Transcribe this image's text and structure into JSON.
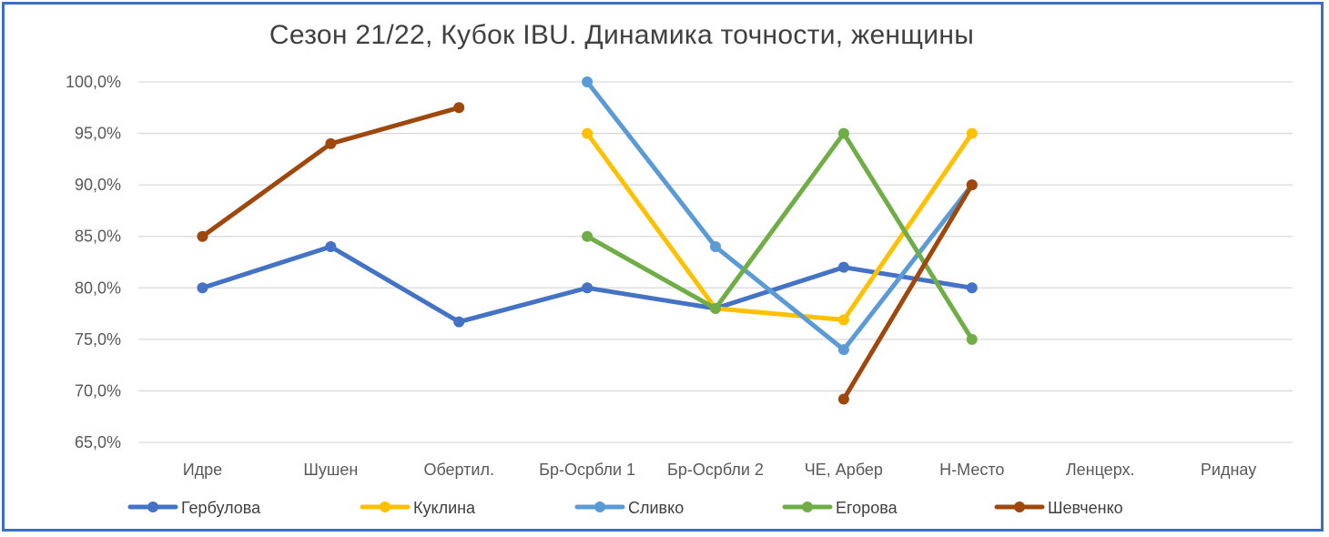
{
  "chart_data": {
    "type": "line",
    "title": "Сезон 21/22, Кубок IBU. Динамика точности, женщины",
    "xlabel": "",
    "ylabel": "",
    "categories": [
      "Идре",
      "Шушен",
      "Обертил.",
      "Бр-Осрбли 1",
      "Бр-Осрбли 2",
      "ЧЕ, Арбер",
      "Н-Место",
      "Ленцерх.",
      "Риднау"
    ],
    "ylim": [
      65,
      100
    ],
    "ytick_step": 5,
    "ytick_labels": [
      "65,0%",
      "70,0%",
      "75,0%",
      "80,0%",
      "85,0%",
      "90,0%",
      "95,0%",
      "100,0%"
    ],
    "grid": true,
    "legend_position": "bottom",
    "series": [
      {
        "name": "Гербулова",
        "color": "#4472c4",
        "values": [
          80,
          84,
          76.7,
          80,
          78,
          82,
          80,
          null,
          null
        ]
      },
      {
        "name": "Куклина",
        "color": "#ffc000",
        "values": [
          null,
          null,
          null,
          95,
          78,
          76.9,
          95,
          null,
          null
        ]
      },
      {
        "name": "Сливко",
        "color": "#5b9bd5",
        "values": [
          null,
          null,
          null,
          100,
          84,
          74,
          90,
          null,
          null
        ]
      },
      {
        "name": "Егорова",
        "color": "#70ad47",
        "values": [
          null,
          null,
          null,
          85,
          78,
          95,
          75,
          null,
          null
        ]
      },
      {
        "name": "Шевченко",
        "color": "#9e480e",
        "values": [
          85,
          94,
          97.5,
          null,
          null,
          69.2,
          90,
          null,
          null
        ]
      }
    ]
  }
}
